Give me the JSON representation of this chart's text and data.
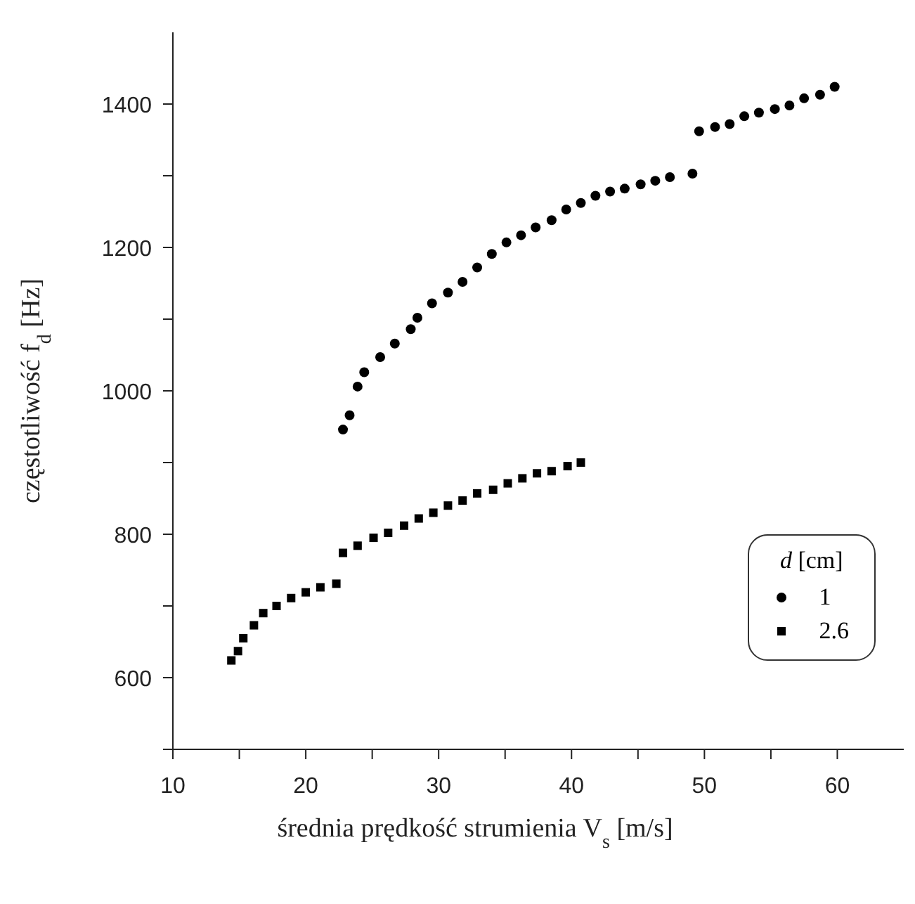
{
  "chart_data": {
    "type": "scatter",
    "xlabel": "średnia prędkość strumienia V$_{s}$ [m/s]",
    "ylabel": "częstotliwość f$_{d}$ [Hz]",
    "legend_title": "d [cm]",
    "legend": "bottom right",
    "grid": false,
    "xlim": [
      10,
      65
    ],
    "xticks": [
      10,
      {
        "value": 15,
        "label": null
      },
      20,
      {
        "value": 25,
        "label": null
      },
      30,
      {
        "value": 35,
        "label": null
      },
      40,
      {
        "value": 45,
        "label": null
      },
      50,
      {
        "value": 55,
        "label": null
      },
      60
    ],
    "ylim": [
      500,
      1500
    ],
    "yticks": [
      {
        "value": 500,
        "label": null
      },
      600,
      {
        "value": 700,
        "label": null
      },
      800,
      {
        "value": 900,
        "label": null
      },
      1000,
      {
        "value": 1100,
        "label": null
      },
      1200,
      {
        "value": 1300,
        "label": null
      },
      1400
    ],
    "series": [
      {
        "name": "1",
        "color": "#000000",
        "marker": "circle",
        "x": [
          22.8,
          23.3,
          23.9,
          24.4,
          25.6,
          26.7,
          27.9,
          28.4,
          29.5,
          30.7,
          31.8,
          32.9,
          34.0,
          35.1,
          36.2,
          37.3,
          38.5,
          39.6,
          40.7,
          41.8,
          42.9,
          44.0,
          45.2,
          46.3,
          47.4,
          49.1,
          49.6,
          50.8,
          51.9,
          53.0,
          54.1,
          55.3,
          56.4,
          57.5,
          58.7,
          59.8
        ],
        "values": [
          946,
          966,
          1006,
          1026,
          1047,
          1066,
          1086,
          1102,
          1122,
          1137,
          1152,
          1172,
          1191,
          1207,
          1217,
          1228,
          1238,
          1253,
          1262,
          1272,
          1278,
          1282,
          1288,
          1293,
          1298,
          1303,
          1362,
          1368,
          1372,
          1383,
          1388,
          1393,
          1398,
          1408,
          1413,
          1424
        ]
      },
      {
        "name": "2.6",
        "color": "#000000",
        "marker": "square",
        "x": [
          14.4,
          14.9,
          15.3,
          16.1,
          16.8,
          17.8,
          18.9,
          20.0,
          21.1,
          22.3,
          22.8,
          23.9,
          25.1,
          26.2,
          27.4,
          28.5,
          29.6,
          30.7,
          31.8,
          32.9,
          34.1,
          35.2,
          36.3,
          37.4,
          38.5,
          39.7,
          40.7
        ],
        "values": [
          624,
          637,
          655,
          673,
          690,
          700,
          711,
          719,
          726,
          731,
          774,
          784,
          795,
          802,
          812,
          822,
          830,
          840,
          847,
          857,
          862,
          871,
          878,
          885,
          888,
          895,
          900
        ]
      }
    ]
  }
}
